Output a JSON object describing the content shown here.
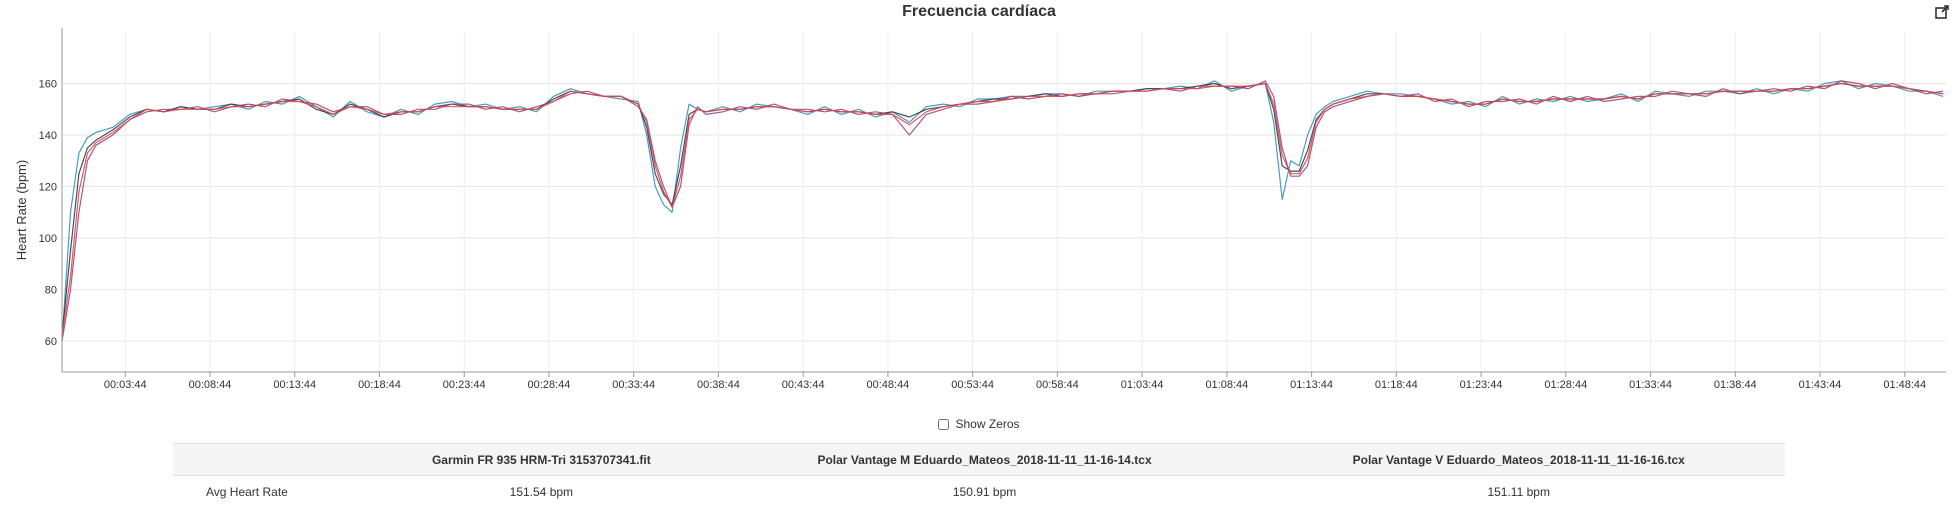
{
  "title": "Frecuencia cardíaca",
  "export_icon": "external-link-icon",
  "show_zeros": {
    "label": "Show Zeros",
    "checked": false
  },
  "table": {
    "columns": [
      "",
      "Garmin FR 935 HRM-Tri 3153707341.fit",
      "Polar Vantage M Eduardo_Mateos_2018-11-11_11-16-14.tcx",
      "Polar Vantage V Eduardo_Mateos_2018-11-11_11-16-16.tcx"
    ],
    "rows": [
      {
        "label": "Avg Heart Rate",
        "values": [
          "151.54 bpm",
          "150.91 bpm",
          "151.11 bpm"
        ]
      }
    ]
  },
  "chart_data": {
    "type": "line",
    "title": "Frecuencia cardíaca",
    "xlabel": "",
    "ylabel": "Heart Rate (bpm)",
    "xlim": [
      "00:00:00",
      "01:51:10"
    ],
    "ylim": [
      48,
      180
    ],
    "x_ticks": [
      "00:03:44",
      "00:08:44",
      "00:13:44",
      "00:18:44",
      "00:23:44",
      "00:28:44",
      "00:33:44",
      "00:38:44",
      "00:43:44",
      "00:48:44",
      "00:53:44",
      "00:58:44",
      "01:03:44",
      "01:08:44",
      "01:13:44",
      "01:18:44",
      "01:23:44",
      "01:28:44",
      "01:33:44",
      "01:38:44",
      "01:43:44",
      "01:48:44"
    ],
    "y_ticks": [
      60,
      80,
      100,
      120,
      140,
      160
    ],
    "grid": true,
    "x": [
      "00:00:00",
      "00:00:30",
      "00:01:00",
      "00:01:30",
      "00:02:00",
      "00:02:30",
      "00:03:00",
      "00:04:00",
      "00:05:00",
      "00:06:00",
      "00:07:00",
      "00:08:00",
      "00:09:00",
      "00:10:00",
      "00:11:00",
      "00:12:00",
      "00:13:00",
      "00:14:00",
      "00:15:00",
      "00:16:00",
      "00:17:00",
      "00:18:00",
      "00:19:00",
      "00:20:00",
      "00:21:00",
      "00:22:00",
      "00:23:00",
      "00:24:00",
      "00:25:00",
      "00:26:00",
      "00:27:00",
      "00:28:00",
      "00:29:00",
      "00:30:00",
      "00:31:00",
      "00:32:00",
      "00:33:00",
      "00:34:00",
      "00:34:30",
      "00:35:00",
      "00:35:30",
      "00:36:00",
      "00:36:30",
      "00:37:00",
      "00:37:30",
      "00:38:00",
      "00:39:00",
      "00:40:00",
      "00:41:00",
      "00:42:00",
      "00:43:00",
      "00:44:00",
      "00:45:00",
      "00:46:00",
      "00:47:00",
      "00:48:00",
      "00:49:00",
      "00:50:00",
      "00:51:00",
      "00:52:00",
      "00:53:00",
      "00:54:00",
      "00:55:00",
      "00:56:00",
      "00:57:00",
      "00:58:00",
      "00:59:00",
      "01:00:00",
      "01:01:00",
      "01:02:00",
      "01:03:00",
      "01:04:00",
      "01:05:00",
      "01:06:00",
      "01:07:00",
      "01:08:00",
      "01:09:00",
      "01:10:00",
      "01:11:00",
      "01:11:30",
      "01:12:00",
      "01:12:30",
      "01:13:00",
      "01:13:30",
      "01:14:00",
      "01:14:30",
      "01:15:00",
      "01:16:00",
      "01:17:00",
      "01:18:00",
      "01:19:00",
      "01:20:00",
      "01:21:00",
      "01:22:00",
      "01:23:00",
      "01:24:00",
      "01:25:00",
      "01:26:00",
      "01:27:00",
      "01:28:00",
      "01:29:00",
      "01:30:00",
      "01:31:00",
      "01:32:00",
      "01:33:00",
      "01:34:00",
      "01:35:00",
      "01:36:00",
      "01:37:00",
      "01:38:00",
      "01:39:00",
      "01:40:00",
      "01:41:00",
      "01:42:00",
      "01:43:00",
      "01:44:00",
      "01:45:00",
      "01:46:00",
      "01:47:00",
      "01:48:00",
      "01:49:00",
      "01:50:00",
      "01:51:00"
    ],
    "series": [
      {
        "color": "#3a8fb7",
        "values": [
          60,
          110,
          133,
          139,
          141,
          142,
          143,
          148,
          150,
          149,
          151,
          150,
          151,
          152,
          150,
          153,
          152,
          155,
          151,
          147,
          153,
          149,
          147,
          150,
          148,
          152,
          153,
          151,
          152,
          150,
          151,
          149,
          155,
          158,
          156,
          155,
          154,
          153,
          140,
          120,
          113,
          110,
          135,
          152,
          150,
          149,
          151,
          149,
          152,
          151,
          150,
          148,
          151,
          148,
          150,
          147,
          149,
          145,
          151,
          152,
          151,
          154,
          154,
          155,
          155,
          156,
          156,
          155,
          157,
          157,
          157,
          158,
          158,
          159,
          158,
          161,
          157,
          159,
          160,
          145,
          115,
          130,
          128,
          140,
          148,
          151,
          153,
          155,
          157,
          156,
          156,
          155,
          154,
          152,
          153,
          151,
          155,
          152,
          154,
          153,
          155,
          153,
          154,
          156,
          153,
          157,
          156,
          155,
          157,
          157,
          156,
          158,
          156,
          158,
          157,
          160,
          161,
          158,
          160,
          159,
          157,
          157,
          155
        ]
      },
      {
        "color": "#2f3e46",
        "values": [
          62,
          95,
          125,
          135,
          138,
          140,
          142,
          147,
          150,
          149,
          151,
          150,
          150,
          152,
          151,
          152,
          153,
          154,
          150,
          148,
          152,
          150,
          147,
          149,
          149,
          151,
          152,
          151,
          151,
          150,
          150,
          150,
          154,
          157,
          156,
          155,
          155,
          152,
          143,
          125,
          117,
          113,
          128,
          148,
          150,
          149,
          150,
          150,
          151,
          151,
          150,
          149,
          150,
          149,
          149,
          148,
          149,
          147,
          150,
          151,
          152,
          153,
          154,
          154,
          155,
          156,
          155,
          156,
          156,
          157,
          157,
          158,
          158,
          158,
          159,
          160,
          158,
          159,
          160,
          150,
          128,
          126,
          126,
          134,
          146,
          150,
          152,
          154,
          156,
          156,
          155,
          155,
          154,
          153,
          152,
          152,
          154,
          153,
          153,
          154,
          154,
          154,
          154,
          155,
          154,
          156,
          156,
          156,
          156,
          157,
          157,
          157,
          157,
          158,
          158,
          159,
          160,
          159,
          159,
          159,
          158,
          157,
          156
        ]
      },
      {
        "color": "#a0457e",
        "values": [
          60,
          80,
          110,
          130,
          136,
          138,
          140,
          146,
          149,
          150,
          150,
          151,
          149,
          151,
          152,
          151,
          154,
          153,
          152,
          149,
          151,
          151,
          148,
          148,
          150,
          150,
          152,
          152,
          150,
          151,
          149,
          151,
          153,
          156,
          157,
          155,
          155,
          151,
          146,
          130,
          120,
          112,
          120,
          144,
          151,
          148,
          149,
          151,
          150,
          152,
          150,
          150,
          149,
          150,
          148,
          149,
          148,
          140,
          148,
          150,
          152,
          152,
          153,
          155,
          154,
          155,
          156,
          155,
          156,
          156,
          157,
          157,
          158,
          157,
          159,
          159,
          159,
          158,
          161,
          155,
          135,
          124,
          124,
          128,
          143,
          149,
          151,
          153,
          155,
          156,
          155,
          156,
          153,
          154,
          151,
          153,
          153,
          154,
          152,
          155,
          153,
          155,
          153,
          154,
          155,
          155,
          157,
          156,
          155,
          158,
          156,
          157,
          158,
          157,
          159,
          158,
          161,
          160,
          158,
          160,
          158,
          156,
          157
        ]
      },
      {
        "color": "#e04848",
        "values": [
          62,
          85,
          118,
          133,
          137,
          139,
          141,
          146,
          150,
          149,
          150,
          150,
          150,
          151,
          151,
          152,
          153,
          153,
          151,
          148,
          151,
          150,
          148,
          149,
          149,
          151,
          151,
          151,
          151,
          150,
          150,
          150,
          153,
          157,
          156,
          155,
          155,
          152,
          145,
          128,
          118,
          112,
          124,
          146,
          150,
          149,
          150,
          150,
          151,
          151,
          150,
          149,
          150,
          149,
          149,
          148,
          148,
          144,
          149,
          151,
          152,
          153,
          153,
          154,
          155,
          155,
          155,
          156,
          156,
          157,
          157,
          157,
          158,
          158,
          158,
          159,
          159,
          159,
          160,
          152,
          132,
          125,
          125,
          131,
          145,
          150,
          152,
          154,
          155,
          156,
          155,
          155,
          154,
          153,
          152,
          152,
          154,
          153,
          153,
          154,
          154,
          154,
          154,
          155,
          154,
          156,
          156,
          156,
          156,
          157,
          157,
          157,
          157,
          158,
          158,
          159,
          160,
          159,
          159,
          159,
          158,
          157,
          156
        ]
      }
    ]
  }
}
